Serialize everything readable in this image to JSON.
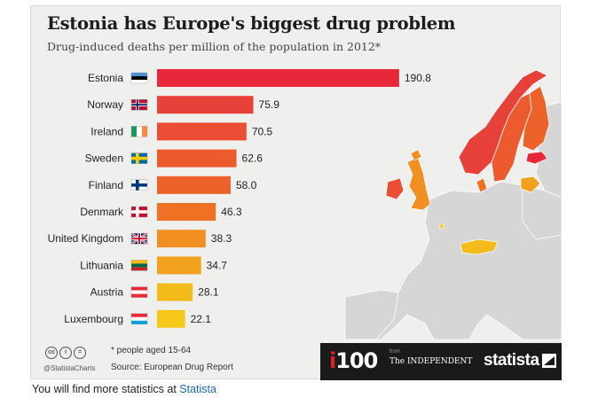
{
  "title": "Estonia has Europe's biggest drug problem",
  "subtitle": "Drug-induced deaths per million of the population in 2012*",
  "footnote": "* people aged 15-64",
  "source": "Source: European Drug Report",
  "handle": "@StatistaCharts",
  "brand": {
    "i100": "100",
    "i100_prefix": "i",
    "from": "from",
    "independent": "The INDEPENDENT",
    "statista": "statista"
  },
  "below": {
    "text": "You will find more statistics at",
    "link": "Statista"
  },
  "colors": {
    "max": "#e82a36",
    "mid": "#ef6f24",
    "min": "#f5c518"
  },
  "chart_data": {
    "type": "bar",
    "orientation": "horizontal",
    "title": "Estonia has Europe's biggest drug problem",
    "subtitle": "Drug-induced deaths per million of the population in 2012*",
    "categories": [
      "Estonia",
      "Norway",
      "Ireland",
      "Sweden",
      "Finland",
      "Denmark",
      "United Kingdom",
      "Lithuania",
      "Austria",
      "Luxembourg"
    ],
    "values": [
      190.8,
      75.9,
      70.5,
      62.6,
      58.0,
      46.3,
      38.3,
      34.7,
      28.1,
      22.1
    ],
    "value_labels": [
      "190.8",
      "75.9",
      "70.5",
      "62.6",
      "58.0",
      "46.3",
      "38.3",
      "34.7",
      "28.1",
      "22.1"
    ],
    "bar_colors": [
      "#e8283a",
      "#e8413a",
      "#ea4e34",
      "#ec5a2e",
      "#ed622a",
      "#ef7224",
      "#f18f22",
      "#f2a11f",
      "#f3bb1b",
      "#f5c81a"
    ],
    "xlim": [
      0,
      200
    ],
    "xlabel": "",
    "ylabel": "",
    "grid": false
  }
}
